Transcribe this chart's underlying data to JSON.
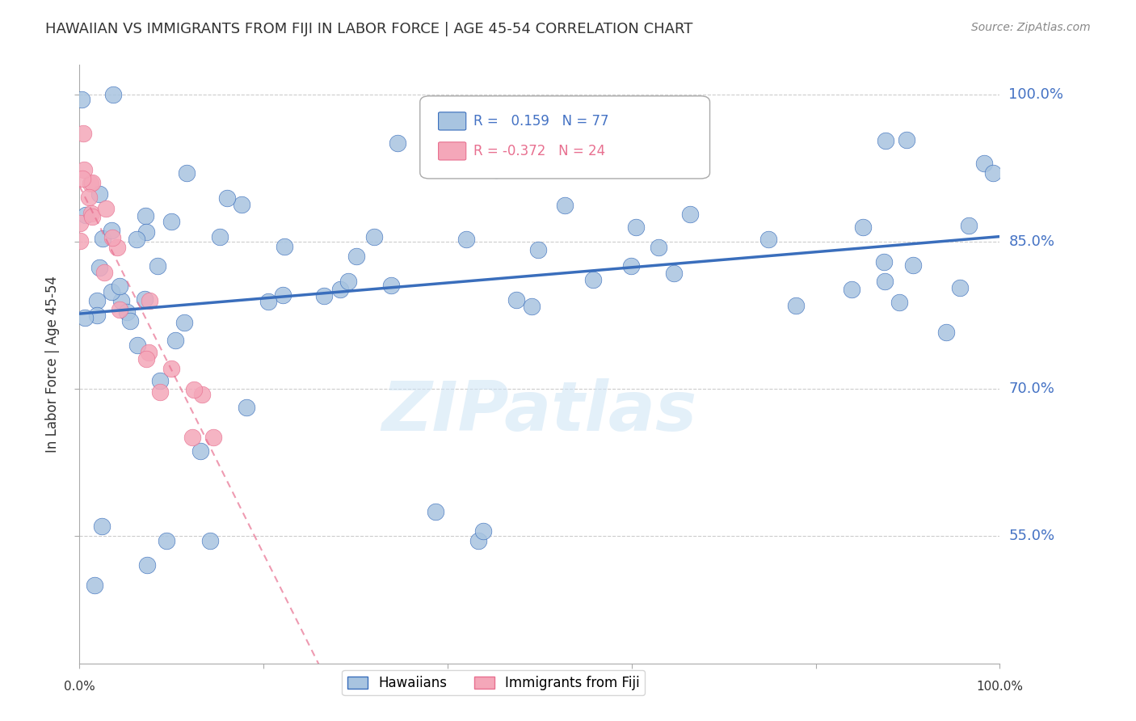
{
  "title": "HAWAIIAN VS IMMIGRANTS FROM FIJI IN LABOR FORCE | AGE 45-54 CORRELATION CHART",
  "source": "Source: ZipAtlas.com",
  "ylabel": "In Labor Force | Age 45-54",
  "xlim": [
    0.0,
    1.0
  ],
  "ylim": [
    0.42,
    1.03
  ],
  "ytick_vals": [
    0.55,
    0.7,
    0.85,
    1.0
  ],
  "ytick_labels": [
    "55.0%",
    "70.0%",
    "85.0%",
    "100.0%"
  ],
  "hawaiians_R": 0.159,
  "hawaiians_N": 77,
  "fiji_R": -0.372,
  "fiji_N": 24,
  "blue_color": "#a8c4e0",
  "pink_color": "#f4a7b9",
  "blue_line_color": "#3a6ebc",
  "pink_line_color": "#e87090",
  "watermark": "ZIPatlas"
}
